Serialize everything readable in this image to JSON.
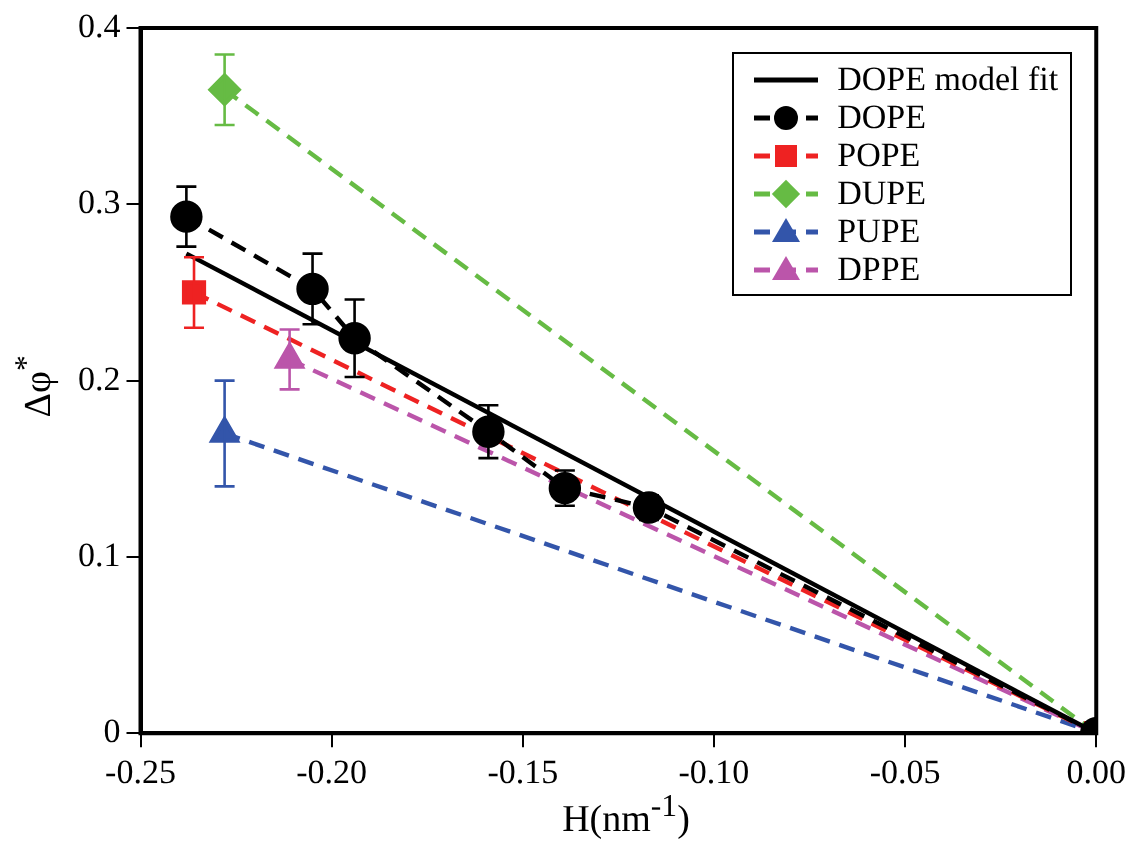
{
  "chart_data": {
    "type": "line",
    "xlabel": "H(nm$^{-1}$)",
    "ylabel": "Δφ$^{*}$",
    "xlim": [
      -0.25,
      0.0
    ],
    "ylim": [
      0,
      0.4
    ],
    "xticks": [
      {
        "value": -0.25,
        "label": "-0.25"
      },
      {
        "value": -0.2,
        "label": "-0.20"
      },
      {
        "value": -0.15,
        "label": "-0.15"
      },
      {
        "value": -0.1,
        "label": "-0.10"
      },
      {
        "value": -0.05,
        "label": "-0.05"
      },
      {
        "value": 0,
        "label": "0.00"
      }
    ],
    "yticks": [
      0,
      0.1,
      0.2,
      0.3,
      0.4
    ],
    "legend": "top right",
    "grid": false,
    "series": [
      {
        "name": "DOPE model fit",
        "color": "#000000",
        "x": [
          -0.238,
          0
        ],
        "values": [
          0.272,
          0
        ],
        "line_style": "solid"
      },
      {
        "name": "DOPE",
        "color": "#000000",
        "x": [
          -0.238,
          -0.205,
          -0.194,
          -0.159,
          -0.139,
          -0.117,
          0
        ],
        "values": [
          0.293,
          0.252,
          0.224,
          0.171,
          0.139,
          0.128,
          0
        ],
        "errors": [
          0.017,
          0.02,
          0.022,
          0.015,
          0.01,
          0.007,
          null
        ],
        "marker": "circle",
        "line_style": "dashed"
      },
      {
        "name": "POPE",
        "color": "#ee2222",
        "x": [
          -0.236,
          0
        ],
        "values": [
          0.25,
          0
        ],
        "errors": [
          0.02,
          null
        ],
        "marker": "square",
        "line_style": "dashed"
      },
      {
        "name": "DUPE",
        "color": "#66bb44",
        "x": [
          -0.228,
          0
        ],
        "values": [
          0.365,
          0
        ],
        "errors": [
          0.02,
          null
        ],
        "marker": "diamond",
        "line_style": "dashed"
      },
      {
        "name": "PUPE",
        "color": "#3355aa",
        "x": [
          -0.228,
          0
        ],
        "values": [
          0.17,
          0
        ],
        "errors": [
          0.03,
          null
        ],
        "marker": "triangle",
        "line_style": "dashed"
      },
      {
        "name": "DPPE",
        "color": "#bb55aa",
        "x": [
          -0.211,
          0
        ],
        "values": [
          0.212,
          0
        ],
        "errors": [
          0.017,
          null
        ],
        "marker": "triangle",
        "line_style": "dashed"
      }
    ]
  }
}
